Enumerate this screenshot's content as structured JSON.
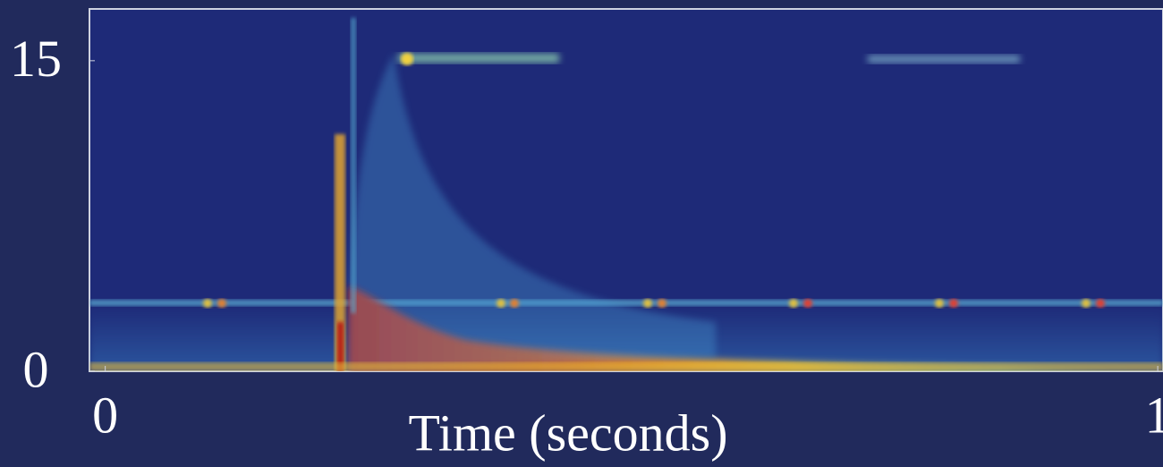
{
  "chart_data": {
    "type": "heatmap",
    "x_label": "Time (seconds)",
    "xlim": [
      -0.015,
      1.005
    ],
    "xticks": [
      0,
      1
    ],
    "ylim": [
      0,
      17.5
    ],
    "yticks": [
      0,
      15
    ]
  }
}
